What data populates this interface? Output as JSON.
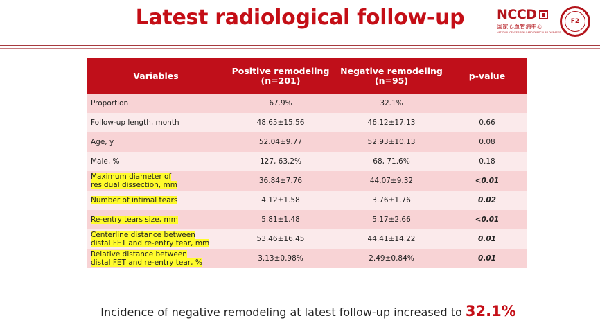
{
  "title": "Latest radiological follow-up",
  "logo": {
    "name": "NCCD",
    "sub_cn": "国家心血管病中心",
    "sub_en": "NATIONAL CENTER FOR CARDIOVASCULAR DISEASES",
    "seal_text": "F2"
  },
  "table": {
    "headers": {
      "variables": "Variables",
      "positive_title": "Positive remodeling",
      "positive_n": "(n=201)",
      "negative_title": "Negative remodeling",
      "negative_n": "(n=95)",
      "pvalue": "p-value"
    },
    "rows": [
      {
        "line1": "Proportion",
        "line2": "",
        "pos": "67.9%",
        "neg": "32.1%",
        "p": "",
        "highlight": false,
        "p_bold": false
      },
      {
        "line1": "Follow-up length, month",
        "line2": "",
        "pos": "48.65±15.56",
        "neg": "46.12±17.13",
        "p": "0.66",
        "highlight": false,
        "p_bold": false
      },
      {
        "line1": "Age, y",
        "line2": "",
        "pos": "52.04±9.77",
        "neg": "52.93±10.13",
        "p": "0.08",
        "highlight": false,
        "p_bold": false
      },
      {
        "line1": "Male, %",
        "line2": "",
        "pos": "127, 63.2%",
        "neg": "68, 71.6%",
        "p": "0.18",
        "highlight": false,
        "p_bold": false
      },
      {
        "line1": "Maximum diameter of",
        "line2": "residual dissection, mm",
        "pos": "36.84±7.76",
        "neg": "44.07±9.32",
        "p": "<0.01",
        "highlight": true,
        "p_bold": true
      },
      {
        "line1": "Number of intimal tears",
        "line2": "",
        "pos": "4.12±1.58",
        "neg": "3.76±1.76",
        "p": "0.02",
        "highlight": true,
        "p_bold": true
      },
      {
        "line1": "Re-entry tears size, mm",
        "line2": "",
        "pos": "5.81±1.48",
        "neg": "5.17±2.66",
        "p": "<0.01",
        "highlight": true,
        "p_bold": true
      },
      {
        "line1": "Centerline distance between",
        "line2": "distal FET and re-entry tear, mm",
        "pos": "53.46±16.45",
        "neg": "44.41±14.22",
        "p": "0.01",
        "highlight": true,
        "p_bold": true
      },
      {
        "line1": "Relative distance between",
        "line2": "distal FET and re-entry tear, %",
        "pos": "3.13±0.98%",
        "neg": "2.49±0.84%",
        "p": "0.01",
        "highlight": true,
        "p_bold": true
      }
    ]
  },
  "footer": {
    "text": "Incidence of negative remodeling at latest follow-up increased to",
    "value": "32.1%"
  }
}
